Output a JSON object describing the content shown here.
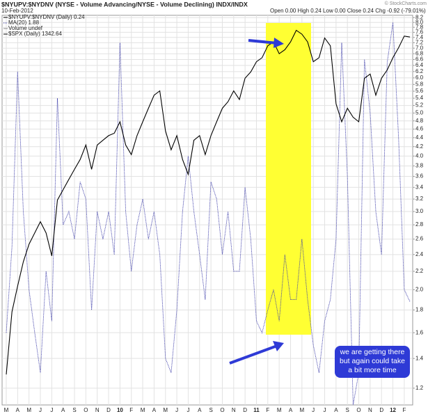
{
  "chart_data": {
    "type": "line",
    "title": "$NYUPV:$NYDNV (NYSE - Volume Advancing/NYSE - Volume Declining) INDX/INDX",
    "date": "10-Feb-2012",
    "quote": "Open 0.00  High 0.24  Low 0.00  Close 0.24  Chg -0.92 (-79.01%)",
    "copyright": "© StockCharts.com",
    "legend_extra": [
      "$NYUPV:$NYDNV (Daily) 0.24",
      "Volume undef"
    ],
    "annotation": "we are getting there but again could take a bit more time",
    "categories": [
      "M",
      null,
      "A",
      null,
      "M",
      null,
      "J",
      null,
      "J",
      null,
      "A",
      null,
      "S",
      null,
      "O",
      null,
      "N",
      null,
      "D",
      null,
      "10",
      null,
      "F",
      null,
      "M",
      null,
      "A",
      null,
      "M",
      null,
      "J",
      null,
      "J",
      null,
      "A",
      null,
      "S",
      null,
      "O",
      null,
      "N",
      null,
      "D",
      null,
      "11",
      null,
      "F",
      null,
      "M",
      null,
      "A",
      null,
      "M",
      null,
      "J",
      null,
      "J",
      null,
      "A",
      null,
      "S",
      null,
      "O",
      null,
      "N",
      null,
      "D",
      null,
      "12",
      null,
      "F",
      null
    ],
    "series": [
      {
        "name": "MA(20) 1.88",
        "color": "#3a3aa8",
        "axis": "y",
        "values": [
          1.6,
          2.5,
          6.2,
          3.0,
          2.0,
          1.6,
          1.3,
          2.2,
          1.7,
          5.4,
          2.8,
          3.0,
          2.6,
          3.5,
          3.2,
          1.8,
          3.0,
          2.6,
          3.0,
          2.4,
          7.2,
          3.0,
          2.2,
          2.8,
          3.2,
          2.6,
          3.0,
          2.4,
          1.4,
          1.3,
          1.8,
          3.0,
          4.0,
          3.0,
          2.4,
          1.9,
          3.5,
          3.2,
          2.4,
          3.0,
          2.2,
          2.2,
          3.4,
          2.6,
          1.7,
          1.6,
          1.8,
          2.0,
          1.7,
          2.4,
          1.9,
          1.9,
          2.6,
          1.9,
          1.5,
          1.3,
          1.7,
          1.9,
          2.6,
          7.2,
          3.6,
          1.1,
          1.3,
          6.6,
          5.0,
          3.0,
          2.4,
          6.5,
          8.0,
          4.4,
          2.0,
          1.88
        ]
      },
      {
        "name": "$SPX (Daily) 1342.64",
        "color": "#000000",
        "axis": "y2",
        "values": [
          700,
          790,
          830,
          870,
          900,
          920,
          940,
          920,
          880,
          980,
          1000,
          1020,
          1040,
          1060,
          1090,
          1040,
          1090,
          1100,
          1110,
          1115,
          1140,
          1090,
          1070,
          1110,
          1140,
          1170,
          1200,
          1210,
          1120,
          1080,
          1110,
          1060,
          1030,
          1100,
          1110,
          1070,
          1110,
          1140,
          1170,
          1185,
          1210,
          1190,
          1240,
          1255,
          1280,
          1290,
          1320,
          1330,
          1300,
          1310,
          1330,
          1360,
          1350,
          1330,
          1280,
          1290,
          1340,
          1320,
          1180,
          1140,
          1170,
          1150,
          1140,
          1240,
          1250,
          1200,
          1240,
          1260,
          1290,
          1315,
          1345,
          1342.64
        ]
      }
    ],
    "ylim": [
      1.1,
      8.3
    ],
    "log_scale": true,
    "y2lim": [
      660,
      1400
    ],
    "grid": true,
    "yticks": [
      1.2,
      1.4,
      1.6,
      1.8,
      {
        "value": 2,
        "label": "2.0"
      },
      2.2,
      2.4,
      2.6,
      2.8,
      {
        "value": 3,
        "label": "3.0"
      },
      3.2,
      3.4,
      3.6,
      3.8,
      {
        "value": 4,
        "label": "4.0"
      },
      4.2,
      4.4,
      4.6,
      4.8,
      {
        "value": 5,
        "label": "5.0"
      },
      5.2,
      5.4,
      5.6,
      5.8,
      {
        "value": 6,
        "label": "6.0"
      },
      6.2,
      6.4,
      6.6,
      6.8,
      {
        "value": 7,
        "label": "7.0"
      },
      7.2,
      7.4,
      7.6,
      7.8,
      {
        "value": 8,
        "label": "8.0"
      },
      8.2
    ]
  }
}
